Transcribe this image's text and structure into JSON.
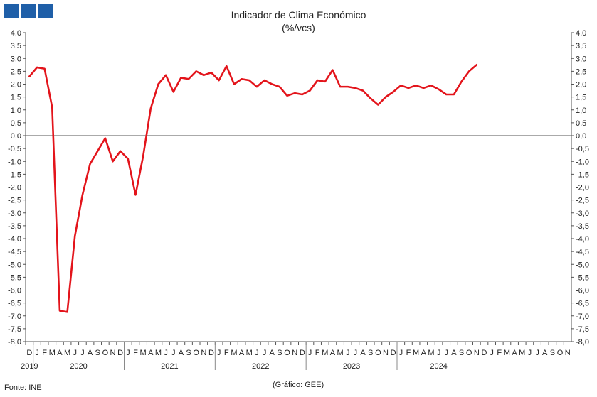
{
  "header": {
    "title": "Indicador de Clima Económico",
    "subtitle": "(%/vcs)"
  },
  "footer": {
    "source": "Fonte: INE",
    "credit": "(Gráfico: GEE)"
  },
  "colors": {
    "series": "#e3141b",
    "axis": "#555555",
    "logo": "#1f5fa8"
  },
  "chart_data": {
    "type": "line",
    "title": "Indicador de Clima Económico",
    "subtitle": "(%/vcs)",
    "ylim": [
      -8.0,
      4.0
    ],
    "ytick_step": 0.5,
    "y_axis_both_sides": true,
    "grid": false,
    "month_labels": [
      "D",
      "J",
      "F",
      "M",
      "A",
      "M",
      "J",
      "J",
      "A",
      "S",
      "O",
      "N",
      "D",
      "J",
      "F",
      "M",
      "A",
      "M",
      "J",
      "J",
      "A",
      "S",
      "O",
      "N",
      "D",
      "J",
      "F",
      "M",
      "A",
      "M",
      "J",
      "J",
      "A",
      "S",
      "O",
      "N",
      "D",
      "J",
      "F",
      "M",
      "A",
      "M",
      "J",
      "J",
      "A",
      "S",
      "O",
      "N",
      "D",
      "J",
      "F",
      "M",
      "A",
      "M",
      "J",
      "J",
      "A",
      "S",
      "O",
      "N",
      "D",
      "J",
      "F",
      "M",
      "A",
      "M",
      "J",
      "J",
      "A",
      "S",
      "O",
      "N"
    ],
    "years": [
      {
        "label": "2019",
        "start": 0,
        "count": 1
      },
      {
        "label": "2020",
        "start": 1,
        "count": 12
      },
      {
        "label": "2021",
        "start": 13,
        "count": 12
      },
      {
        "label": "2022",
        "start": 25,
        "count": 12
      },
      {
        "label": "2023",
        "start": 37,
        "count": 12
      },
      {
        "label": "2024",
        "start": 49,
        "count": 11
      }
    ],
    "series": [
      {
        "values": [
          2.3,
          2.65,
          2.6,
          1.1,
          -6.8,
          -6.85,
          -3.9,
          -2.3,
          -1.1,
          -0.6,
          -0.1,
          -1.0,
          -0.6,
          -0.9,
          -2.3,
          -0.8,
          1.05,
          2.0,
          2.35,
          1.7,
          2.25,
          2.2,
          2.5,
          2.35,
          2.45,
          2.15,
          2.7,
          2.0,
          2.2,
          2.15,
          1.9,
          2.15,
          2.0,
          1.9,
          1.55,
          1.65,
          1.6,
          1.75,
          2.15,
          2.1,
          2.55,
          1.9,
          1.9,
          1.85,
          1.75,
          1.45,
          1.2,
          1.5,
          1.7,
          1.95,
          1.85,
          1.95,
          1.85,
          1.95,
          1.8,
          1.6,
          1.6,
          2.1,
          2.5,
          2.75
        ]
      }
    ]
  }
}
